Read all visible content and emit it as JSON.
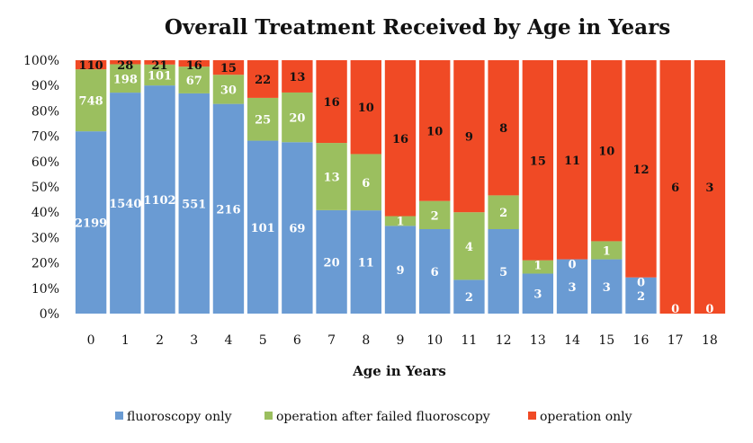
{
  "chart_data": {
    "type": "bar",
    "stacked": true,
    "normalized": true,
    "title": "Overall Treatment Received by Age in Years",
    "xlabel": "Age in Years",
    "ylabel": "",
    "ylim": [
      0,
      100
    ],
    "y_ticks": [
      "0%",
      "10%",
      "20%",
      "30%",
      "40%",
      "50%",
      "60%",
      "70%",
      "80%",
      "90%",
      "100%"
    ],
    "categories": [
      "0",
      "1",
      "2",
      "3",
      "4",
      "5",
      "6",
      "7",
      "8",
      "9",
      "10",
      "11",
      "12",
      "13",
      "14",
      "15",
      "16",
      "17",
      "18"
    ],
    "legend_position": "bottom",
    "grid": false,
    "series": [
      {
        "name": "fluoroscopy only",
        "color": "#6a9bd3",
        "label_color": "#ffffff",
        "values": [
          2199,
          1540,
          1102,
          551,
          216,
          101,
          69,
          20,
          11,
          9,
          6,
          2,
          5,
          3,
          3,
          3,
          2,
          0,
          0
        ]
      },
      {
        "name": "operation after failed fluoroscopy",
        "color": "#9bbf5f",
        "label_color": "#ffffff",
        "values": [
          748,
          198,
          101,
          67,
          30,
          25,
          20,
          13,
          6,
          1,
          2,
          4,
          2,
          1,
          0,
          1,
          0,
          0,
          0
        ]
      },
      {
        "name": "operation only",
        "color": "#f04a25",
        "label_color": "#111111",
        "values": [
          110,
          28,
          21,
          16,
          15,
          22,
          13,
          16,
          10,
          16,
          10,
          9,
          8,
          15,
          11,
          10,
          12,
          6,
          3
        ]
      }
    ]
  }
}
